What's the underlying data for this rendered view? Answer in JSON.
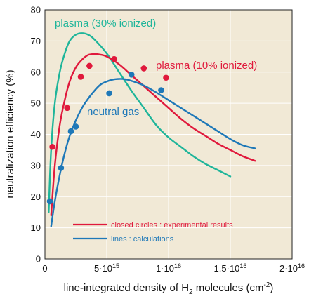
{
  "chart_data": {
    "type": "line",
    "xlabel": "line-integrated density of H₂ molecules (cm⁻²)",
    "ylabel": "neutralization efficiency (%)",
    "xlim": [
      0,
      2e+16
    ],
    "ylim": [
      0,
      80
    ],
    "grid": true,
    "plot_background": "#f1e9d6",
    "x_ticks": [
      {
        "value": 0,
        "mant": "0",
        "exp": ""
      },
      {
        "value": 5000000000000000.0,
        "mant": "5×10",
        "exp": "15"
      },
      {
        "value": 1e+16,
        "mant": "1×10",
        "exp": "16"
      },
      {
        "value": 1.5e+16,
        "mant": "1.5×10",
        "exp": "16"
      },
      {
        "value": 2e+16,
        "mant": "2×10",
        "exp": "16"
      }
    ],
    "y_ticks": [
      0,
      10,
      20,
      30,
      40,
      50,
      60,
      70,
      80
    ],
    "series": [
      {
        "name": "plasma (30% ionized)",
        "color": "#1fb59a",
        "x": [
          300000000000000.0,
          500000000000000.0,
          800000000000000.0,
          1200000000000000.0,
          1600000000000000.0,
          2000000000000000.0,
          2500000000000000.0,
          3000000000000000.0,
          3500000000000000.0,
          4000000000000000.0,
          5000000000000000.0,
          6000000000000000.0,
          7000000000000000.0,
          8000000000000000.0,
          9000000000000000.0,
          1e+16,
          1.1e+16,
          1.2e+16,
          1.3e+16,
          1.4e+16,
          1.5e+16
        ],
        "y": [
          15,
          35,
          50,
          60,
          66,
          70,
          72,
          72.5,
          72,
          70.5,
          66,
          60,
          54,
          48.5,
          43,
          39,
          36,
          33,
          30.5,
          28.5,
          26.5
        ]
      },
      {
        "name": "plasma (10% ionized)",
        "color": "#e0193c",
        "x": [
          500000000000000.0,
          800000000000000.0,
          1200000000000000.0,
          1600000000000000.0,
          2000000000000000.0,
          2500000000000000.0,
          3000000000000000.0,
          3500000000000000.0,
          4000000000000000.0,
          4500000000000000.0,
          5000000000000000.0,
          6000000000000000.0,
          7000000000000000.0,
          8000000000000000.0,
          9000000000000000.0,
          1e+16,
          1.1e+16,
          1.2e+16,
          1.3e+16,
          1.4e+16,
          1.5e+16,
          1.6e+16,
          1.7e+16
        ],
        "y": [
          14,
          30,
          43,
          51,
          57,
          61.5,
          64,
          65.5,
          65.8,
          65.6,
          65,
          62.5,
          59,
          55.5,
          52,
          48.5,
          45,
          42,
          39.5,
          37,
          35,
          33,
          31.5
        ]
      },
      {
        "name": "neutral gas",
        "color": "#1e78b8",
        "x": [
          500000000000000.0,
          800000000000000.0,
          1200000000000000.0,
          1600000000000000.0,
          2000000000000000.0,
          2500000000000000.0,
          3000000000000000.0,
          3500000000000000.0,
          4000000000000000.0,
          4500000000000000.0,
          5000000000000000.0,
          5500000000000000.0,
          6000000000000000.0,
          6500000000000000.0,
          7000000000000000.0,
          8000000000000000.0,
          9000000000000000.0,
          1e+16,
          1.1e+16,
          1.2e+16,
          1.3e+16,
          1.4e+16,
          1.5e+16,
          1.6e+16,
          1.7e+16
        ],
        "y": [
          10.5,
          18.5,
          27,
          34,
          39.5,
          44.5,
          48.5,
          51.5,
          54,
          56,
          57,
          57.6,
          57.8,
          57.7,
          57.2,
          55.7,
          53.5,
          51,
          48.5,
          46,
          43.5,
          41,
          38.5,
          36.5,
          35.5
        ]
      }
    ],
    "points": [
      {
        "series": "plasma (10% ionized)",
        "color": "#e0193c",
        "x": 600000000000000.0,
        "y": 36
      },
      {
        "series": "plasma (10% ionized)",
        "color": "#e0193c",
        "x": 1800000000000000.0,
        "y": 48.5
      },
      {
        "series": "plasma (10% ionized)",
        "color": "#e0193c",
        "x": 2900000000000000.0,
        "y": 58.5
      },
      {
        "series": "plasma (10% ionized)",
        "color": "#e0193c",
        "x": 3600000000000000.0,
        "y": 62
      },
      {
        "series": "plasma (10% ionized)",
        "color": "#e0193c",
        "x": 5600000000000000.0,
        "y": 64.2
      },
      {
        "series": "plasma (10% ionized)",
        "color": "#e0193c",
        "x": 8000000000000000.0,
        "y": 61.2
      },
      {
        "series": "plasma (10% ionized)",
        "color": "#e0193c",
        "x": 9800000000000000.0,
        "y": 58.2
      },
      {
        "series": "neutral gas",
        "color": "#1e78b8",
        "x": 400000000000000.0,
        "y": 18.5
      },
      {
        "series": "neutral gas",
        "color": "#1e78b8",
        "x": 1300000000000000.0,
        "y": 29.2
      },
      {
        "series": "neutral gas",
        "color": "#1e78b8",
        "x": 2100000000000000.0,
        "y": 41
      },
      {
        "series": "neutral gas",
        "color": "#1e78b8",
        "x": 2500000000000000.0,
        "y": 42.5
      },
      {
        "series": "neutral gas",
        "color": "#1e78b8",
        "x": 5200000000000000.0,
        "y": 53.2
      },
      {
        "series": "neutral gas",
        "color": "#1e78b8",
        "x": 7000000000000000.0,
        "y": 59.2
      },
      {
        "series": "neutral gas",
        "color": "#1e78b8",
        "x": 9400000000000000.0,
        "y": 54.2
      }
    ],
    "labels": [
      {
        "text": "plasma (30% ionized)",
        "color": "#1fb59a"
      },
      {
        "text": "plasma (10% ionized)",
        "color": "#e0193c"
      },
      {
        "text": "neutral gas",
        "color": "#1e78b8"
      }
    ],
    "legend": {
      "placement": "bottom-center",
      "entries": [
        {
          "text": "closed circles : experimental results",
          "color": "#e0193c"
        },
        {
          "text": "lines : calculations",
          "color": "#1e78b8"
        }
      ]
    },
    "annotations": {
      "xlabel_parts": {
        "a": "line-integrated density of H",
        "sub": "2",
        "b": " molecules (cm",
        "sup": "-2",
        "c": ")"
      }
    }
  }
}
